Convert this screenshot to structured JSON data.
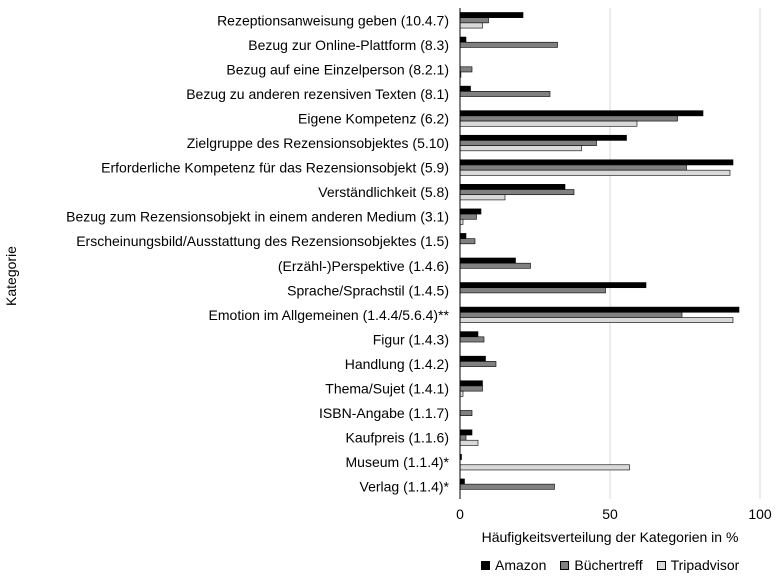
{
  "chart_data": {
    "type": "bar",
    "orientation": "horizontal",
    "title": "",
    "xlabel": "Häufigkeitsverteilung der Kategorien in %",
    "ylabel": "Kategorie",
    "xlim": [
      0,
      100
    ],
    "xticks": [
      0,
      50,
      100
    ],
    "grid": "vertical",
    "legend_position": "bottom",
    "categories": [
      "Rezeptionsanweisung geben (10.4.7)",
      "Bezug zur Online-Plattform (8.3)",
      "Bezug auf eine Einzelperson (8.2.1)",
      "Bezug zu anderen rezensiven Texten (8.1)",
      "Eigene Kompetenz (6.2)",
      "Zielgruppe des Rezensionsobjektes (5.10)",
      "Erforderliche Kompetenz für das Rezensionsobjekt (5.9)",
      "Verständlichkeit (5.8)",
      "Bezug zum Rezensionsobjekt in einem anderen Medium (3.1)",
      "Erscheinungsbild/Ausstattung des Rezensionsobjektes (1.5)",
      "(Erzähl-)Perspektive (1.4.6)",
      "Sprache/Sprachstil (1.4.5)",
      "Emotion im Allgemeinen (1.4.4/5.6.4)**",
      "Figur (1.4.3)",
      "Handlung (1.4.2)",
      "Thema/Sujet (1.4.1)",
      "ISBN-Angabe (1.1.7)",
      "Kaufpreis (1.1.6)",
      "Museum (1.1.4)*",
      "Verlag (1.1.4)*"
    ],
    "series": [
      {
        "name": "Amazon",
        "color": "#000000",
        "values": [
          21,
          2,
          0,
          3.5,
          81,
          55.5,
          91,
          35,
          7,
          2,
          18.5,
          62,
          93,
          6,
          8.5,
          7.5,
          0,
          4,
          0.5,
          1.5
        ]
      },
      {
        "name": "Büchertreff",
        "color": "#808080",
        "values": [
          9.5,
          32.5,
          4,
          30,
          72.5,
          45.5,
          75.5,
          38,
          5.5,
          5,
          23.5,
          48.5,
          74,
          8,
          12,
          7.5,
          4,
          2,
          0,
          31.5
        ]
      },
      {
        "name": "Tripadvisor",
        "color": "#d9d9d9",
        "values": [
          7.5,
          0,
          0.3,
          0,
          59,
          40.5,
          90,
          15,
          1,
          0,
          0,
          0,
          91,
          0,
          0,
          1,
          0,
          6,
          56.5,
          0
        ]
      }
    ]
  }
}
